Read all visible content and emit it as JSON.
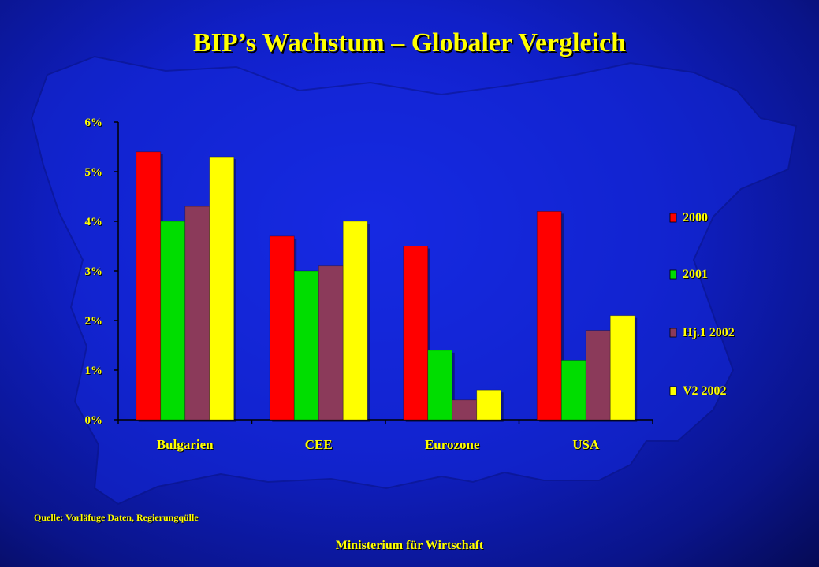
{
  "title": "BIP’s Wachstum – Globaler Vergleich",
  "source_note": "Quelle: Vorläfuge Daten, Regierungqülle",
  "footer": "Ministerium für Wirtschaft",
  "chart_data": {
    "type": "bar",
    "title": "",
    "xlabel": "",
    "ylabel": "",
    "categories": [
      "Bulgarien",
      "CEE",
      "Eurozone",
      "USA"
    ],
    "series": [
      {
        "name": "2000",
        "values": [
          5.4,
          3.7,
          3.5,
          4.2
        ],
        "color": "#ff0000"
      },
      {
        "name": "2001",
        "values": [
          4.0,
          3.0,
          1.4,
          1.2
        ],
        "color": "#00dd00"
      },
      {
        "name": "Hj.1 2002",
        "values": [
          4.3,
          3.1,
          0.4,
          1.8
        ],
        "color": "#8b3a5a"
      },
      {
        "name": "V2 2002",
        "values": [
          5.3,
          4.0,
          0.6,
          2.1
        ],
        "color": "#ffff00"
      }
    ],
    "ylim": [
      0,
      6
    ],
    "yticks": [
      "0%",
      "1%",
      "2%",
      "3%",
      "4%",
      "5%",
      "6%"
    ],
    "grid": false,
    "legend_position": "right"
  }
}
